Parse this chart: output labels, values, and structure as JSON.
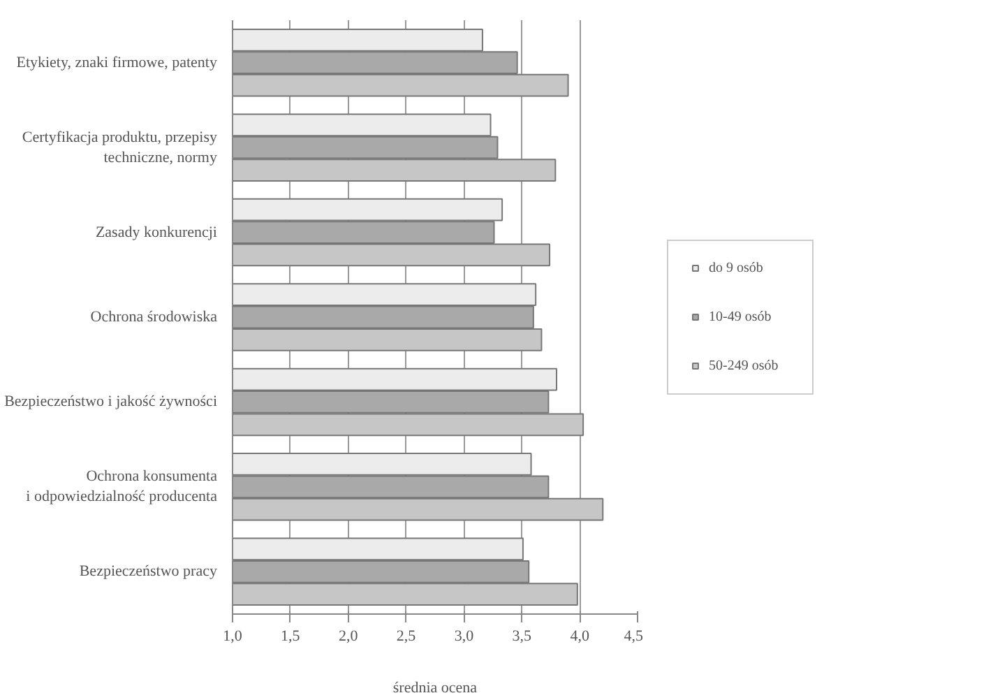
{
  "chart_data": {
    "type": "bar",
    "orientation": "horizontal",
    "xlabel": "średnia ocena",
    "categories": [
      "Etykiety, znaki firmowe, patenty",
      "Certyfikacja produktu, przepisy\ntechniczne, normy",
      "Zasady konkurencji",
      "Ochrona środowiska",
      "Bezpieczeństwo i jakość żywności",
      "Ochrona konsumenta\ni odpowiedzialność producenta",
      "Bezpieczeństwo pracy"
    ],
    "series": [
      {
        "name": "do 9 osób",
        "color": "#ececec",
        "values": [
          3.16,
          3.23,
          3.33,
          3.62,
          3.8,
          3.58,
          3.51
        ]
      },
      {
        "name": "10-49 osób",
        "color": "#a9a9a9",
        "values": [
          3.46,
          3.29,
          3.26,
          3.6,
          3.73,
          3.73,
          3.56
        ]
      },
      {
        "name": "50-249 osób",
        "color": "#c6c6c6",
        "values": [
          3.9,
          3.79,
          3.74,
          3.67,
          4.03,
          4.2,
          3.98
        ]
      }
    ],
    "xlim": [
      1.0,
      4.5
    ],
    "xticks": [
      {
        "value": 1.0,
        "label": "1,0"
      },
      {
        "value": 1.5,
        "label": "1,5"
      },
      {
        "value": 2.0,
        "label": "2,0"
      },
      {
        "value": 2.5,
        "label": "2,5"
      },
      {
        "value": 3.0,
        "label": "3,0"
      },
      {
        "value": 3.5,
        "label": "3,5"
      },
      {
        "value": 4.0,
        "label": "4,0"
      },
      {
        "value": 4.5,
        "label": "4,5"
      }
    ],
    "grid": "x",
    "legend": "right"
  }
}
